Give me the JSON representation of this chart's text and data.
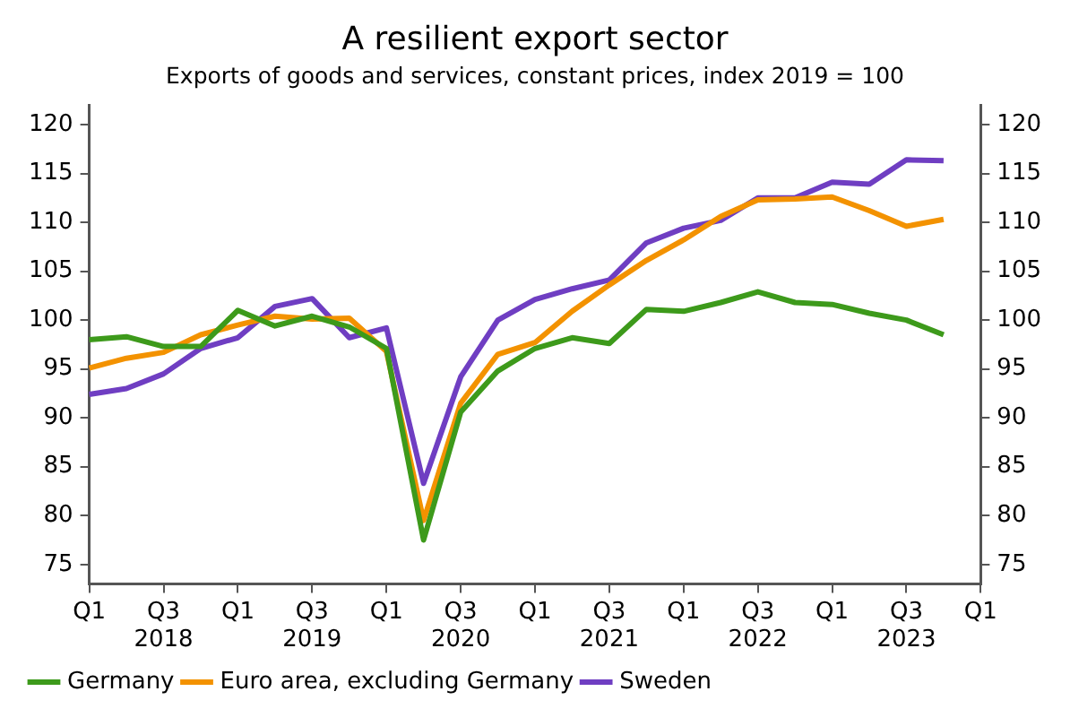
{
  "chart_data": {
    "type": "line",
    "title": "A resilient export sector",
    "subtitle": "Exports of goods and services, constant prices, index 2019 = 100",
    "categories": [
      "Q1",
      null,
      "Q3\n2018",
      null,
      "Q1",
      null,
      "Q3\n2019",
      null,
      "Q1",
      null,
      "Q3\n2020",
      null,
      "Q1",
      null,
      "Q3\n2021",
      null,
      "Q1",
      null,
      "Q3\n2022",
      null,
      "Q1",
      null,
      "Q3\n2023",
      null,
      "Q1"
    ],
    "ylim": [
      73,
      122
    ],
    "yticks": [
      75,
      80,
      85,
      90,
      95,
      100,
      105,
      110,
      115,
      120
    ],
    "y2lim": [
      73,
      122
    ],
    "y2ticks": [
      75,
      80,
      85,
      90,
      95,
      100,
      105,
      110,
      115,
      120
    ],
    "legend": "bottom left",
    "series": [
      {
        "name": "Germany",
        "color": "#3d9a1b",
        "values": [
          98.0,
          98.3,
          97.3,
          97.3,
          101.0,
          99.4,
          100.4,
          99.3,
          97.1,
          77.5,
          90.6,
          94.8,
          97.1,
          98.2,
          97.6,
          101.1,
          100.9,
          101.8,
          102.9,
          101.8,
          101.6,
          100.7,
          100.0,
          98.5,
          null
        ]
      },
      {
        "name": "Euro area, excluding Germany",
        "color": "#f39200",
        "values": [
          95.1,
          96.1,
          96.7,
          98.5,
          99.5,
          100.4,
          100.1,
          100.2,
          96.8,
          79.5,
          91.5,
          96.5,
          97.7,
          100.9,
          103.6,
          106.1,
          108.2,
          110.6,
          112.3,
          112.4,
          112.6,
          111.2,
          109.6,
          110.3,
          null
        ]
      },
      {
        "name": "Sweden",
        "color": "#6f3ec2",
        "values": [
          92.4,
          93.0,
          94.5,
          97.1,
          98.2,
          101.4,
          102.2,
          98.2,
          99.2,
          83.3,
          94.2,
          100.0,
          102.1,
          103.2,
          104.1,
          107.9,
          109.4,
          110.2,
          112.5,
          112.5,
          114.1,
          113.9,
          116.4,
          116.3,
          null
        ]
      }
    ]
  }
}
